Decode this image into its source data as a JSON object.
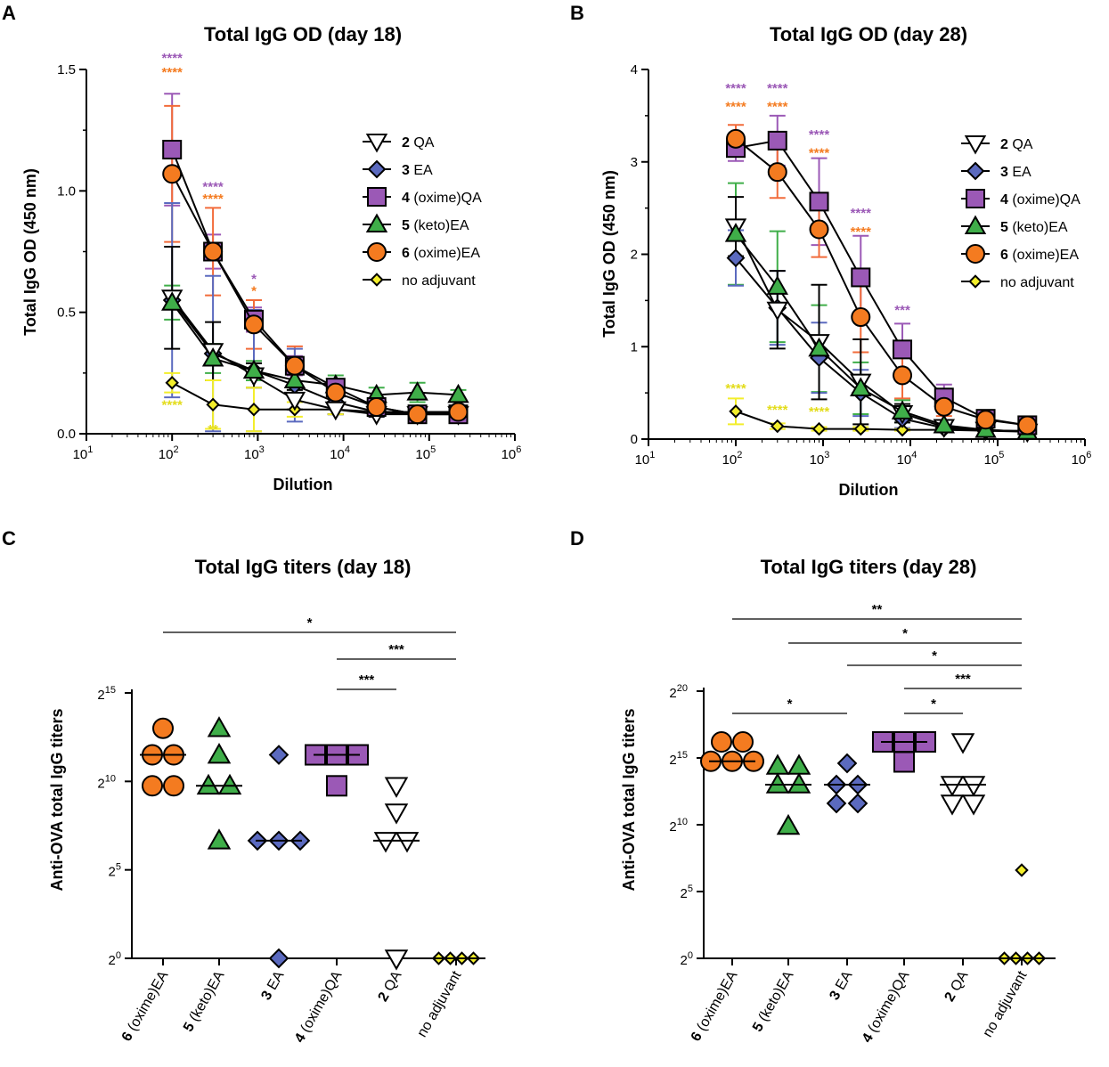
{
  "colors": {
    "QA2": "#ffffff",
    "EA3": "#5b6abf",
    "QA4": "#9b59b6",
    "EA5": "#3fae49",
    "EA6": "#f47b20",
    "none": "#f3ee2b",
    "err_QA4": "#9b59b6",
    "err_EA6": "#f26b3a",
    "err_EA5": "#3fae49",
    "err_EA3": "#5b6abf",
    "star_purple": "#9b59b6",
    "star_orange": "#f47b20",
    "star_yellow": "#e3dc1a"
  },
  "chart_data": [
    {
      "panel": "A",
      "type": "line",
      "title": "Total IgG OD (day 18)",
      "xlabel": "Dilution",
      "ylabel": "Total IgG OD (450 nm)",
      "xscale": "log",
      "xlim": [
        10,
        1000000
      ],
      "ylim": [
        0,
        1.5
      ],
      "xticks": [
        {
          "base": "10",
          "exp": "1"
        },
        {
          "base": "10",
          "exp": "2"
        },
        {
          "base": "10",
          "exp": "3"
        },
        {
          "base": "10",
          "exp": "4"
        },
        {
          "base": "10",
          "exp": "5"
        },
        {
          "base": "10",
          "exp": "6"
        }
      ],
      "yticks": [
        "0.0",
        "0.5",
        "1.0",
        "1.5"
      ],
      "x": [
        100,
        300,
        900,
        2700,
        8100,
        24300,
        72900,
        218700
      ],
      "series": [
        {
          "key": "QA2",
          "name_bold": "2",
          "name": "QA",
          "marker": "tri-down",
          "values": [
            0.56,
            0.34,
            0.24,
            0.14,
            0.1,
            0.08,
            0.08,
            0.08
          ],
          "err": [
            0.21,
            0.12,
            0.05,
            0.04,
            0.02,
            0.01,
            0.01,
            0.01
          ]
        },
        {
          "key": "EA3",
          "name_bold": "3",
          "name": "EA",
          "marker": "diamond",
          "values": [
            0.55,
            0.33,
            0.26,
            0.2,
            0.13,
            0.09,
            0.08,
            0.08
          ],
          "err": [
            0.4,
            0.32,
            0.25,
            0.15,
            0.05,
            0.02,
            0.01,
            0.01
          ]
        },
        {
          "key": "QA4",
          "name_bold": "4",
          "name": "(oxime)QA",
          "marker": "square",
          "values": [
            1.17,
            0.75,
            0.47,
            0.28,
            0.19,
            0.11,
            0.08,
            0.08
          ],
          "err": [
            0.23,
            0.07,
            0.05,
            0.04,
            0.03,
            0.02,
            0.01,
            0.01
          ]
        },
        {
          "key": "EA5",
          "name_bold": "5",
          "name": "(keto)EA",
          "marker": "triangle",
          "values": [
            0.54,
            0.31,
            0.26,
            0.22,
            0.2,
            0.16,
            0.17,
            0.16
          ],
          "err": [
            0.07,
            0.06,
            0.04,
            0.03,
            0.04,
            0.03,
            0.04,
            0.02
          ]
        },
        {
          "key": "EA6",
          "name_bold": "6",
          "name": "(oxime)EA",
          "marker": "circle",
          "values": [
            1.07,
            0.75,
            0.45,
            0.28,
            0.17,
            0.11,
            0.08,
            0.09
          ],
          "err": [
            0.28,
            0.18,
            0.1,
            0.08,
            0.05,
            0.02,
            0.01,
            0.01
          ]
        },
        {
          "key": "none",
          "name_bold": "",
          "name": "no adjuvant",
          "marker": "diamond",
          "values": [
            0.21,
            0.12,
            0.1,
            0.1,
            0.1,
            0.09,
            0.09,
            0.09
          ],
          "err": [
            0.04,
            0.1,
            0.09,
            0.03,
            0.02,
            0.01,
            0.01,
            0.01
          ]
        }
      ],
      "annotations": [
        {
          "x": 100,
          "text": "****",
          "color": "star_purple",
          "at": 1.53
        },
        {
          "x": 100,
          "text": "****",
          "color": "star_orange",
          "at": 1.47
        },
        {
          "x": 300,
          "text": "****",
          "color": "star_purple",
          "at": 1.0
        },
        {
          "x": 300,
          "text": "****",
          "color": "star_orange",
          "at": 0.95
        },
        {
          "x": 900,
          "text": "*",
          "color": "star_purple",
          "at": 0.62
        },
        {
          "x": 900,
          "text": "*",
          "color": "star_orange",
          "at": 0.57
        },
        {
          "x": 100,
          "text": "****",
          "color": "star_yellow",
          "at": 0.1
        },
        {
          "x": 300,
          "text": "**",
          "color": "star_yellow",
          "at": 0.0
        }
      ]
    },
    {
      "panel": "B",
      "type": "line",
      "title": "Total IgG OD (day 28)",
      "xlabel": "Dilution",
      "ylabel": "Total IgG OD (450 nm)",
      "xscale": "log",
      "xlim": [
        10,
        1000000
      ],
      "ylim": [
        0,
        4
      ],
      "xticks": [
        {
          "base": "10",
          "exp": "1"
        },
        {
          "base": "10",
          "exp": "2"
        },
        {
          "base": "10",
          "exp": "3"
        },
        {
          "base": "10",
          "exp": "4"
        },
        {
          "base": "10",
          "exp": "5"
        },
        {
          "base": "10",
          "exp": "6"
        }
      ],
      "yticks": [
        "0",
        "1",
        "2",
        "3",
        "4"
      ],
      "x": [
        100,
        300,
        900,
        2700,
        8100,
        24300,
        72900,
        218700
      ],
      "series": [
        {
          "key": "QA2",
          "name_bold": "2",
          "name": "QA",
          "marker": "tri-down",
          "values": [
            2.3,
            1.4,
            1.05,
            0.62,
            0.28,
            0.13,
            0.1,
            0.08
          ],
          "err": [
            0.32,
            0.42,
            0.62,
            0.46,
            0.1,
            0.04,
            0.02,
            0.01
          ]
        },
        {
          "key": "EA3",
          "name_bold": "3",
          "name": "EA",
          "marker": "diamond",
          "values": [
            1.96,
            1.42,
            0.88,
            0.5,
            0.22,
            0.12,
            0.09,
            0.08
          ],
          "err": [
            0.3,
            0.4,
            0.38,
            0.25,
            0.1,
            0.04,
            0.02,
            0.01
          ]
        },
        {
          "key": "QA4",
          "name_bold": "4",
          "name": "(oxime)QA",
          "marker": "square",
          "values": [
            3.15,
            3.23,
            2.57,
            1.75,
            0.97,
            0.45,
            0.22,
            0.15
          ],
          "err": [
            0.14,
            0.27,
            0.47,
            0.45,
            0.28,
            0.14,
            0.05,
            0.03
          ]
        },
        {
          "key": "EA5",
          "name_bold": "5",
          "name": "(keto)EA",
          "marker": "triangle",
          "values": [
            2.22,
            1.65,
            0.98,
            0.55,
            0.3,
            0.15,
            0.1,
            0.08
          ],
          "err": [
            0.55,
            0.6,
            0.47,
            0.28,
            0.12,
            0.05,
            0.02,
            0.01
          ]
        },
        {
          "key": "EA6",
          "name_bold": "6",
          "name": "(oxime)EA",
          "marker": "circle",
          "values": [
            3.25,
            2.89,
            2.27,
            1.32,
            0.69,
            0.35,
            0.21,
            0.15
          ],
          "err": [
            0.15,
            0.28,
            0.3,
            0.38,
            0.25,
            0.1,
            0.04,
            0.02
          ]
        },
        {
          "key": "none",
          "name_bold": "",
          "name": "no adjuvant",
          "marker": "diamond",
          "values": [
            0.3,
            0.14,
            0.11,
            0.11,
            0.1,
            0.1,
            0.09,
            0.09
          ],
          "err": [
            0.14,
            0.03,
            0.02,
            0.02,
            0.01,
            0.01,
            0.01,
            0.01
          ]
        }
      ],
      "annotations": [
        {
          "x": 100,
          "text": "****",
          "color": "star_purple",
          "at": 3.75
        },
        {
          "x": 100,
          "text": "****",
          "color": "star_orange",
          "at": 3.55
        },
        {
          "x": 300,
          "text": "****",
          "color": "star_purple",
          "at": 3.75
        },
        {
          "x": 300,
          "text": "****",
          "color": "star_orange",
          "at": 3.55
        },
        {
          "x": 900,
          "text": "****",
          "color": "star_purple",
          "at": 3.25
        },
        {
          "x": 900,
          "text": "****",
          "color": "star_orange",
          "at": 3.05
        },
        {
          "x": 2700,
          "text": "****",
          "color": "star_purple",
          "at": 2.4
        },
        {
          "x": 2700,
          "text": "****",
          "color": "star_orange",
          "at": 2.2
        },
        {
          "x": 8100,
          "text": "***",
          "color": "star_purple",
          "at": 1.35
        },
        {
          "x": 100,
          "text": "****",
          "color": "star_yellow",
          "at": 0.5
        },
        {
          "x": 300,
          "text": "****",
          "color": "star_yellow",
          "at": 0.27
        },
        {
          "x": 900,
          "text": "****",
          "color": "star_yellow",
          "at": 0.25
        }
      ]
    },
    {
      "panel": "C",
      "type": "scatter",
      "title": "Total IgG titers (day 18)",
      "ylabel": "Anti-OVA total IgG titers",
      "yscale": "log2",
      "ylim": [
        0,
        15
      ],
      "yticks": [
        {
          "base": "2",
          "exp": "0"
        },
        {
          "base": "2",
          "exp": "5"
        },
        {
          "base": "2",
          "exp": "10"
        },
        {
          "base": "2",
          "exp": "15"
        }
      ],
      "categories": [
        {
          "key": "EA6",
          "bold": "6",
          "label": "(oxime)EA",
          "marker": "circle",
          "points": [
            13,
            11.5,
            11.5,
            9.75,
            9.75
          ],
          "median": 11.5
        },
        {
          "key": "EA5",
          "bold": "5",
          "label": "(keto)EA",
          "marker": "triangle",
          "points": [
            13,
            11.5,
            9.75,
            9.75,
            6.65
          ],
          "median": 9.75
        },
        {
          "key": "EA3",
          "bold": "3",
          "label": "EA",
          "marker": "diamond",
          "points": [
            11.5,
            6.65,
            6.65,
            6.65,
            0
          ],
          "median": 6.65
        },
        {
          "key": "QA4",
          "bold": "4",
          "label": "(oxime)QA",
          "marker": "square",
          "points": [
            11.5,
            11.5,
            11.5,
            9.75
          ],
          "median": 11.5
        },
        {
          "key": "QA2",
          "bold": "2",
          "label": "QA",
          "marker": "tri-down",
          "points": [
            9.75,
            8.25,
            6.65,
            6.65,
            0
          ],
          "median": 6.65
        },
        {
          "key": "none",
          "bold": "",
          "label": "no adjuvant",
          "marker": "diamond",
          "points": [
            0,
            0,
            0,
            0
          ],
          "median": 0
        }
      ],
      "comparisons": [
        {
          "from": 0,
          "to": 5,
          "text": "*"
        },
        {
          "from": 3,
          "to": 5,
          "text": "***"
        },
        {
          "from": 3,
          "to": 4,
          "text": "***"
        }
      ]
    },
    {
      "panel": "D",
      "type": "scatter",
      "title": "Total IgG titers (day 28)",
      "ylabel": "Anti-OVA total IgG titers",
      "yscale": "log2",
      "ylim": [
        0,
        20
      ],
      "yticks": [
        {
          "base": "2",
          "exp": "0"
        },
        {
          "base": "2",
          "exp": "5"
        },
        {
          "base": "2",
          "exp": "10"
        },
        {
          "base": "2",
          "exp": "15"
        },
        {
          "base": "2",
          "exp": "20"
        }
      ],
      "categories": [
        {
          "key": "EA6",
          "bold": "6",
          "label": "(oxime)EA",
          "marker": "circle",
          "points": [
            16.2,
            16.2,
            14.75,
            14.75,
            14.75
          ],
          "median": 14.75
        },
        {
          "key": "EA5",
          "bold": "5",
          "label": "(keto)EA",
          "marker": "triangle",
          "points": [
            14.4,
            14.4,
            13,
            13,
            9.9
          ],
          "median": 13
        },
        {
          "key": "EA3",
          "bold": "3",
          "label": "EA",
          "marker": "diamond",
          "points": [
            14.6,
            13,
            13,
            11.6,
            11.6
          ],
          "median": 13
        },
        {
          "key": "QA4",
          "bold": "4",
          "label": "(oxime)QA",
          "marker": "square",
          "points": [
            16.2,
            16.2,
            16.2,
            14.7
          ],
          "median": 16.2
        },
        {
          "key": "QA2",
          "bold": "2",
          "label": "QA",
          "marker": "tri-down",
          "points": [
            16.2,
            13,
            13,
            11.6,
            11.6
          ],
          "median": 13
        },
        {
          "key": "none",
          "bold": "",
          "label": "no adjuvant",
          "marker": "diamond",
          "points": [
            6.6,
            0,
            0,
            0,
            0
          ],
          "median": 0
        }
      ],
      "comparisons": [
        {
          "from": 0,
          "to": 5,
          "text": "**"
        },
        {
          "from": 1,
          "to": 5,
          "text": "*"
        },
        {
          "from": 2,
          "to": 5,
          "text": "*"
        },
        {
          "from": 3,
          "to": 5,
          "text": "***"
        },
        {
          "from": 0,
          "to": 2,
          "text": "*"
        },
        {
          "from": 3,
          "to": 4,
          "text": "*"
        }
      ]
    }
  ]
}
